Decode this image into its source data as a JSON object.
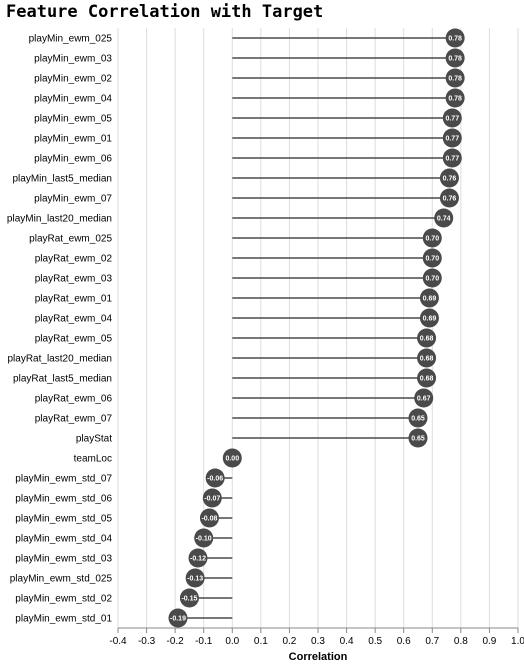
{
  "chart_data": {
    "type": "lollipop",
    "title": "Feature Correlation with Target",
    "xlabel": "Correlation",
    "xlim": [
      -0.4,
      1.0
    ],
    "x_ticks": [
      "-0.4",
      "-0.3",
      "-0.2",
      "-0.1",
      "0.0",
      "0.1",
      "0.2",
      "0.3",
      "0.4",
      "0.5",
      "0.6",
      "0.7",
      "0.8",
      "0.9",
      "1.0"
    ],
    "grid": "vertical",
    "colors": {
      "marker": "#4a4a4a",
      "stem": "#4a4a4a",
      "grid": "#dddddd",
      "axis": "#888888",
      "label": "#ffffff"
    },
    "categories": [
      "playMin_ewm_025",
      "playMin_ewm_03",
      "playMin_ewm_02",
      "playMin_ewm_04",
      "playMin_ewm_05",
      "playMin_ewm_01",
      "playMin_ewm_06",
      "playMin_last5_median",
      "playMin_ewm_07",
      "playMin_last20_median",
      "playRat_ewm_025",
      "playRat_ewm_02",
      "playRat_ewm_03",
      "playRat_ewm_01",
      "playRat_ewm_04",
      "playRat_ewm_05",
      "playRat_last20_median",
      "playRat_last5_median",
      "playRat_ewm_06",
      "playRat_ewm_07",
      "playStat",
      "teamLoc",
      "playMin_ewm_std_07",
      "playMin_ewm_std_06",
      "playMin_ewm_std_05",
      "playMin_ewm_std_04",
      "playMin_ewm_std_03",
      "playMin_ewm_std_025",
      "playMin_ewm_std_02",
      "playMin_ewm_std_01"
    ],
    "values": [
      0.78,
      0.78,
      0.78,
      0.78,
      0.77,
      0.77,
      0.77,
      0.76,
      0.76,
      0.74,
      0.7,
      0.7,
      0.7,
      0.69,
      0.69,
      0.68,
      0.68,
      0.68,
      0.67,
      0.65,
      0.65,
      0.0,
      -0.06,
      -0.07,
      -0.08,
      -0.1,
      -0.12,
      -0.13,
      -0.15,
      -0.19
    ],
    "value_labels": [
      "0.78",
      "0.78",
      "0.78",
      "0.78",
      "0.77",
      "0.77",
      "0.77",
      "0.76",
      "0.76",
      "0.74",
      "0.70",
      "0.70",
      "0.70",
      "0.69",
      "0.69",
      "0.68",
      "0.68",
      "0.68",
      "0.67",
      "0.65",
      "0.65",
      "0.00",
      "-0.06",
      "-0.07",
      "-0.08",
      "-0.10",
      "-0.12",
      "-0.13",
      "-0.15",
      "-0.19"
    ]
  }
}
